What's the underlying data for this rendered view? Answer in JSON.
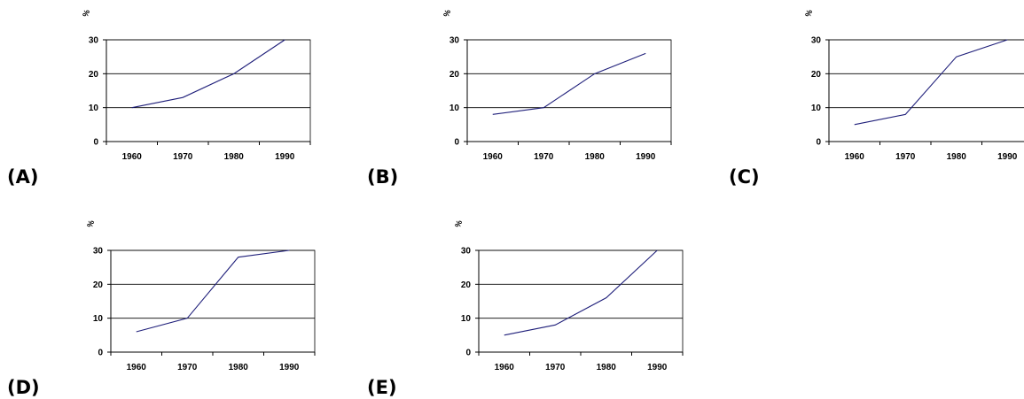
{
  "chart_data": [
    {
      "type": "line",
      "panel_label": "(A)",
      "ylabel": "%",
      "categories": [
        "1960",
        "1970",
        "1980",
        "1990"
      ],
      "yticks": [
        "0",
        "10",
        "20",
        "30"
      ],
      "ylim": [
        0,
        30
      ],
      "grid": true,
      "color": "#1f1f7a",
      "values": [
        10,
        13,
        20,
        30
      ]
    },
    {
      "type": "line",
      "panel_label": "(B)",
      "ylabel": "%",
      "categories": [
        "1960",
        "1970",
        "1980",
        "1990"
      ],
      "yticks": [
        "0",
        "10",
        "20",
        "30"
      ],
      "ylim": [
        0,
        30
      ],
      "grid": true,
      "color": "#1f1f7a",
      "values": [
        8,
        10,
        20,
        26
      ]
    },
    {
      "type": "line",
      "panel_label": "(C)",
      "ylabel": "%",
      "categories": [
        "1960",
        "1970",
        "1980",
        "1990"
      ],
      "yticks": [
        "0",
        "10",
        "20",
        "30"
      ],
      "ylim": [
        0,
        30
      ],
      "grid": true,
      "color": "#1f1f7a",
      "values": [
        5,
        8,
        25,
        30
      ]
    },
    {
      "type": "line",
      "panel_label": "(D)",
      "ylabel": "%",
      "categories": [
        "1960",
        "1970",
        "1980",
        "1990"
      ],
      "yticks": [
        "0",
        "10",
        "20",
        "30"
      ],
      "ylim": [
        0,
        30
      ],
      "grid": true,
      "color": "#1f1f7a",
      "values": [
        6,
        10,
        28,
        30
      ]
    },
    {
      "type": "line",
      "panel_label": "(E)",
      "ylabel": "%",
      "categories": [
        "1960",
        "1970",
        "1980",
        "1990"
      ],
      "yticks": [
        "0",
        "10",
        "20",
        "30"
      ],
      "ylim": [
        0,
        30
      ],
      "grid": true,
      "color": "#1f1f7a",
      "values": [
        5,
        8,
        16,
        30
      ]
    }
  ]
}
